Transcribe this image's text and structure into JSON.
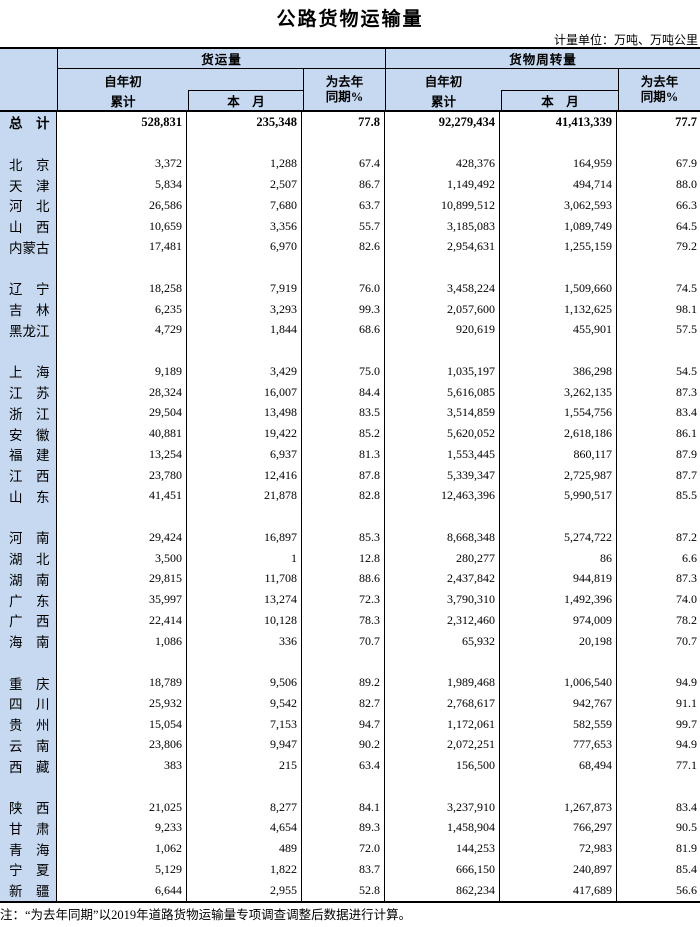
{
  "title": "公路货物运输量",
  "unit_note": "计量单位：万吨、万吨公里",
  "footnote": "注：“为去年同期”以2019年道路货物运输量专项调查调整后数据进行计算。",
  "colors": {
    "header_blue": "#c6d9f0",
    "border": "#000000"
  },
  "table": {
    "header": {
      "freight_group": "货运量",
      "turnover_group": "货物周转量",
      "cum_line1": "自年初",
      "cum_line2": "累计",
      "month": "本　月",
      "yoy_line1": "为去年",
      "yoy_line2": "同期%"
    },
    "total_row": {
      "label": "总　计",
      "values": [
        "528,831",
        "235,348",
        "77.8",
        "92,279,434",
        "41,413,339",
        "77.7"
      ]
    },
    "groups": [
      [
        {
          "label": "北　京",
          "values": [
            "3,372",
            "1,288",
            "67.4",
            "428,376",
            "164,959",
            "67.9"
          ]
        },
        {
          "label": "天　津",
          "values": [
            "5,834",
            "2,507",
            "86.7",
            "1,149,492",
            "494,714",
            "88.0"
          ]
        },
        {
          "label": "河　北",
          "values": [
            "26,586",
            "7,680",
            "63.7",
            "10,899,512",
            "3,062,593",
            "66.3"
          ]
        },
        {
          "label": "山　西",
          "values": [
            "10,659",
            "3,356",
            "55.7",
            "3,185,083",
            "1,089,749",
            "64.5"
          ]
        },
        {
          "label": "内蒙古",
          "values": [
            "17,481",
            "6,970",
            "82.6",
            "2,954,631",
            "1,255,159",
            "79.2"
          ]
        }
      ],
      [
        {
          "label": "辽　宁",
          "values": [
            "18,258",
            "7,919",
            "76.0",
            "3,458,224",
            "1,509,660",
            "74.5"
          ]
        },
        {
          "label": "吉　林",
          "values": [
            "6,235",
            "3,293",
            "99.3",
            "2,057,600",
            "1,132,625",
            "98.1"
          ]
        },
        {
          "label": "黑龙江",
          "values": [
            "4,729",
            "1,844",
            "68.6",
            "920,619",
            "455,901",
            "57.5"
          ]
        }
      ],
      [
        {
          "label": "上　海",
          "values": [
            "9,189",
            "3,429",
            "75.0",
            "1,035,197",
            "386,298",
            "54.5"
          ]
        },
        {
          "label": "江　苏",
          "values": [
            "28,324",
            "16,007",
            "84.4",
            "5,616,085",
            "3,262,135",
            "87.3"
          ]
        },
        {
          "label": "浙　江",
          "values": [
            "29,504",
            "13,498",
            "83.5",
            "3,514,859",
            "1,554,756",
            "83.4"
          ]
        },
        {
          "label": "安　徽",
          "values": [
            "40,881",
            "19,422",
            "85.2",
            "5,620,052",
            "2,618,186",
            "86.1"
          ]
        },
        {
          "label": "福　建",
          "values": [
            "13,254",
            "6,937",
            "81.3",
            "1,553,445",
            "860,117",
            "87.9"
          ]
        },
        {
          "label": "江　西",
          "values": [
            "23,780",
            "12,416",
            "87.8",
            "5,339,347",
            "2,725,987",
            "87.7"
          ]
        },
        {
          "label": "山　东",
          "values": [
            "41,451",
            "21,878",
            "82.8",
            "12,463,396",
            "5,990,517",
            "85.5"
          ]
        }
      ],
      [
        {
          "label": "河　南",
          "values": [
            "29,424",
            "16,897",
            "85.3",
            "8,668,348",
            "5,274,722",
            "87.2"
          ]
        },
        {
          "label": "湖　北",
          "values": [
            "3,500",
            "1",
            "12.8",
            "280,277",
            "86",
            "6.6"
          ]
        },
        {
          "label": "湖　南",
          "values": [
            "29,815",
            "11,708",
            "88.6",
            "2,437,842",
            "944,819",
            "87.3"
          ]
        },
        {
          "label": "广　东",
          "values": [
            "35,997",
            "13,274",
            "72.3",
            "3,790,310",
            "1,492,396",
            "74.0"
          ]
        },
        {
          "label": "广　西",
          "values": [
            "22,414",
            "10,128",
            "78.3",
            "2,312,460",
            "974,009",
            "78.2"
          ]
        },
        {
          "label": "海　南",
          "values": [
            "1,086",
            "336",
            "70.7",
            "65,932",
            "20,198",
            "70.7"
          ]
        }
      ],
      [
        {
          "label": "重　庆",
          "values": [
            "18,789",
            "9,506",
            "89.2",
            "1,989,468",
            "1,006,540",
            "94.9"
          ]
        },
        {
          "label": "四　川",
          "values": [
            "25,932",
            "9,542",
            "82.7",
            "2,768,617",
            "942,767",
            "91.1"
          ]
        },
        {
          "label": "贵　州",
          "values": [
            "15,054",
            "7,153",
            "94.7",
            "1,172,061",
            "582,559",
            "99.7"
          ]
        },
        {
          "label": "云　南",
          "values": [
            "23,806",
            "9,947",
            "90.2",
            "2,072,251",
            "777,653",
            "94.9"
          ]
        },
        {
          "label": "西　藏",
          "values": [
            "383",
            "215",
            "63.4",
            "156,500",
            "68,494",
            "77.1"
          ]
        }
      ],
      [
        {
          "label": "陕　西",
          "values": [
            "21,025",
            "8,277",
            "84.1",
            "3,237,910",
            "1,267,873",
            "83.4"
          ]
        },
        {
          "label": "甘　肃",
          "values": [
            "9,233",
            "4,654",
            "89.3",
            "1,458,904",
            "766,297",
            "90.5"
          ]
        },
        {
          "label": "青　海",
          "values": [
            "1,062",
            "489",
            "72.0",
            "144,253",
            "72,983",
            "81.9"
          ]
        },
        {
          "label": "宁　夏",
          "values": [
            "5,129",
            "1,822",
            "83.7",
            "666,150",
            "240,897",
            "85.4"
          ]
        },
        {
          "label": "新　疆",
          "values": [
            "6,644",
            "2,955",
            "52.8",
            "862,234",
            "417,689",
            "56.6"
          ]
        }
      ]
    ]
  }
}
